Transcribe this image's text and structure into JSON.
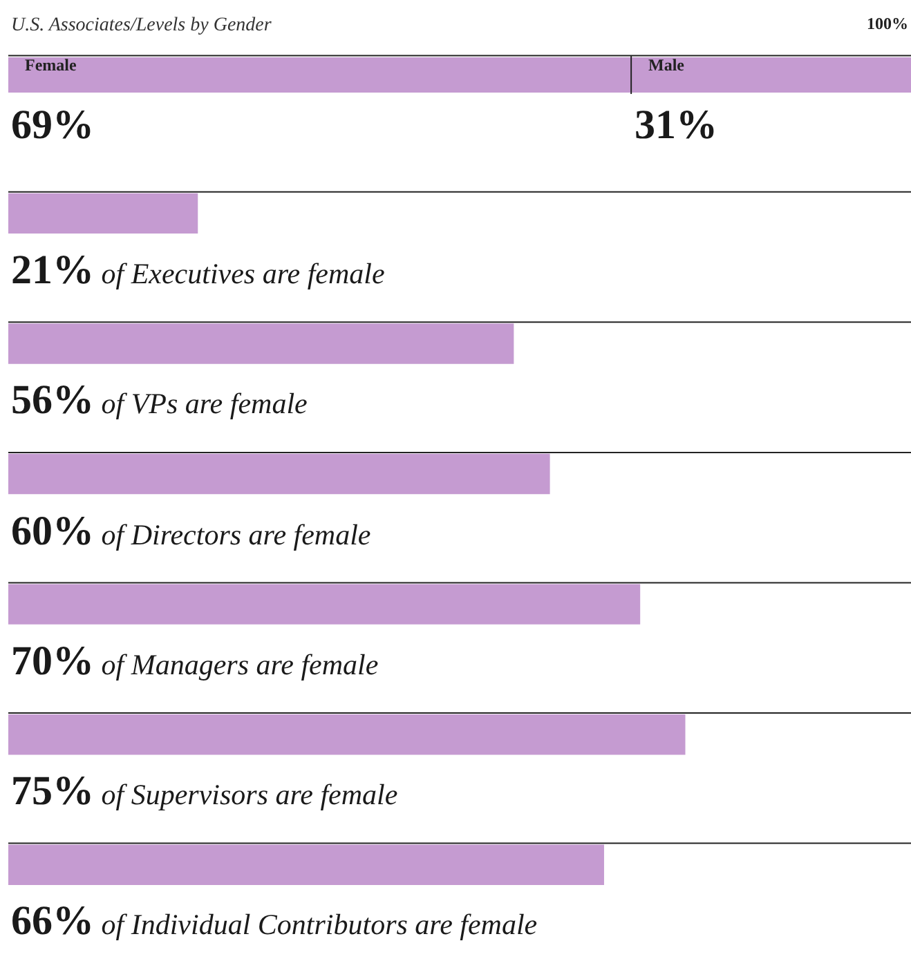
{
  "chart_data": [
    {
      "type": "bar",
      "title": "U.S. Associates/Levels by Gender",
      "orientation": "horizontal",
      "stacked": true,
      "categories": [
        null
      ],
      "annotations": [
        "100%"
      ],
      "series": [
        {
          "name": "Female",
          "color": "#c59bd1",
          "values": [
            69
          ],
          "value_labels": [
            "69%"
          ]
        },
        {
          "name": "Male",
          "color": "#c59bd1",
          "values": [
            31
          ],
          "value_labels": [
            "31%"
          ]
        }
      ]
    },
    {
      "type": "bar",
      "orientation": "horizontal",
      "xlim": [
        0,
        100
      ],
      "color": "#c59bd1",
      "categories": [
        "of Executives are female",
        "of VPs are female",
        "of Directors are female",
        "of Managers are female",
        "of Supervisors are female",
        "of Individual Contributors are female"
      ],
      "values": [
        21,
        56,
        60,
        70,
        75,
        66
      ],
      "value_labels": [
        "21%",
        "56%",
        "60%",
        "70%",
        "75%",
        "66%"
      ]
    }
  ]
}
